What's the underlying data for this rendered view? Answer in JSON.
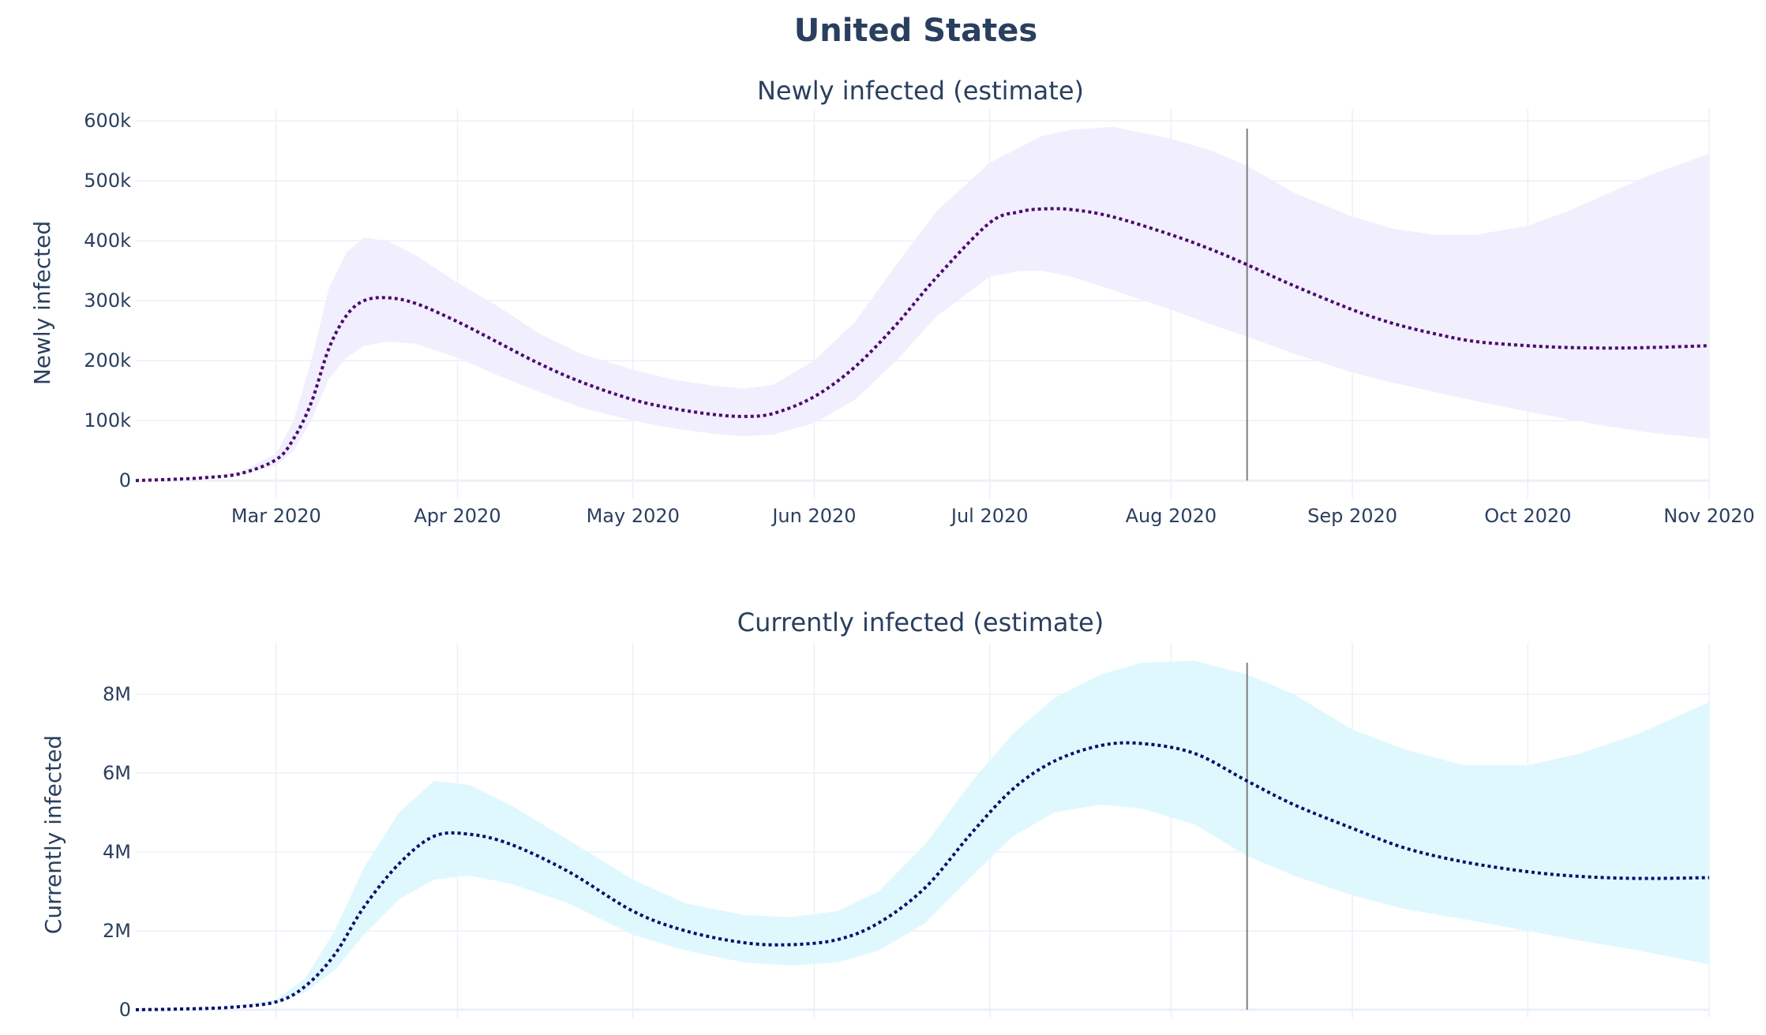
{
  "title": "United States",
  "colors": {
    "newly_line": "#4a0a6b",
    "newly_band": "#f1eefd",
    "current_line": "#0d0d6b",
    "current_band": "#dff8fe",
    "text": "#2a3f5f",
    "grid": "#ebf0f8",
    "marker": "#7f7f7f"
  },
  "chart_data": [
    {
      "type": "line",
      "title": "Newly infected (estimate)",
      "ylabel": "Newly infected",
      "xlabel": "",
      "xlim": [
        "2020-02-06",
        "2020-11-01"
      ],
      "ylim": [
        -30000,
        620000
      ],
      "x_ticks": [
        "Mar 2020",
        "Apr 2020",
        "May 2020",
        "Jun 2020",
        "Jul 2020",
        "Aug 2020",
        "Sep 2020",
        "Oct 2020",
        "Nov 2020"
      ],
      "x_tick_dates": [
        "2020-03-01",
        "2020-04-01",
        "2020-05-01",
        "2020-06-01",
        "2020-07-01",
        "2020-08-01",
        "2020-09-01",
        "2020-10-01",
        "2020-11-01"
      ],
      "y_ticks": [
        0,
        100000,
        200000,
        300000,
        400000,
        500000,
        600000
      ],
      "y_tick_labels": [
        "0",
        "100k",
        "200k",
        "300k",
        "400k",
        "500k",
        "600k"
      ],
      "grid": true,
      "legend": "none",
      "marker_date": "2020-08-14",
      "dates": [
        "2020-02-06",
        "2020-02-12",
        "2020-02-18",
        "2020-02-24",
        "2020-03-01",
        "2020-03-04",
        "2020-03-07",
        "2020-03-10",
        "2020-03-13",
        "2020-03-16",
        "2020-03-20",
        "2020-03-25",
        "2020-04-01",
        "2020-04-08",
        "2020-04-15",
        "2020-04-22",
        "2020-05-01",
        "2020-05-08",
        "2020-05-15",
        "2020-05-20",
        "2020-05-25",
        "2020-06-01",
        "2020-06-08",
        "2020-06-15",
        "2020-06-22",
        "2020-07-01",
        "2020-07-06",
        "2020-07-10",
        "2020-07-15",
        "2020-07-22",
        "2020-08-01",
        "2020-08-08",
        "2020-08-14",
        "2020-08-22",
        "2020-09-01",
        "2020-09-08",
        "2020-09-15",
        "2020-09-22",
        "2020-10-01",
        "2020-10-08",
        "2020-10-15",
        "2020-10-22",
        "2020-11-01"
      ],
      "series": [
        {
          "values": [
            0,
            2000,
            5000,
            12000,
            35000,
            70000,
            130000,
            220000,
            275000,
            300000,
            305000,
            295000,
            265000,
            230000,
            195000,
            165000,
            135000,
            120000,
            110000,
            107000,
            112000,
            140000,
            190000,
            260000,
            340000,
            430000,
            448000,
            453000,
            452000,
            440000,
            410000,
            385000,
            360000,
            325000,
            285000,
            262000,
            245000,
            232000,
            225000,
            222000,
            221000,
            222000,
            225000
          ],
          "lower": [
            0,
            1500,
            4000,
            10000,
            25000,
            50000,
            100000,
            170000,
            205000,
            225000,
            232000,
            228000,
            205000,
            175000,
            148000,
            122000,
            100000,
            87000,
            78000,
            74000,
            77000,
            96000,
            135000,
            200000,
            275000,
            340000,
            350000,
            350000,
            340000,
            318000,
            285000,
            260000,
            240000,
            212000,
            180000,
            163000,
            148000,
            133000,
            115000,
            102000,
            90000,
            80000,
            70000
          ],
          "upper": [
            0,
            2500,
            6000,
            15000,
            45000,
            100000,
            200000,
            320000,
            380000,
            405000,
            400000,
            375000,
            330000,
            290000,
            245000,
            212000,
            185000,
            168000,
            158000,
            153000,
            160000,
            200000,
            265000,
            360000,
            450000,
            530000,
            555000,
            575000,
            585000,
            590000,
            570000,
            550000,
            525000,
            480000,
            440000,
            420000,
            410000,
            410000,
            425000,
            450000,
            480000,
            510000,
            545000
          ]
        }
      ]
    },
    {
      "type": "line",
      "title": "Currently infected (estimate)",
      "ylabel": "Currently infected",
      "xlabel": "",
      "xlim": [
        "2020-02-06",
        "2020-11-01"
      ],
      "ylim": [
        -200000,
        9300000
      ],
      "y_ticks": [
        0,
        2000000,
        4000000,
        6000000,
        8000000
      ],
      "y_tick_labels": [
        "0",
        "2M",
        "4M",
        "6M",
        "8M"
      ],
      "grid": true,
      "legend": "none",
      "marker_date": "2020-08-14",
      "dates": [
        "2020-02-06",
        "2020-02-14",
        "2020-02-22",
        "2020-03-01",
        "2020-03-06",
        "2020-03-11",
        "2020-03-16",
        "2020-03-22",
        "2020-03-28",
        "2020-04-03",
        "2020-04-10",
        "2020-04-20",
        "2020-05-01",
        "2020-05-10",
        "2020-05-20",
        "2020-05-28",
        "2020-06-05",
        "2020-06-12",
        "2020-06-20",
        "2020-06-28",
        "2020-07-05",
        "2020-07-12",
        "2020-07-20",
        "2020-07-27",
        "2020-08-05",
        "2020-08-14",
        "2020-08-22",
        "2020-09-01",
        "2020-09-10",
        "2020-09-20",
        "2020-10-01",
        "2020-10-10",
        "2020-10-20",
        "2020-11-01"
      ],
      "series": [
        {
          "values": [
            0,
            20000,
            60000,
            200000,
            600000,
            1400000,
            2600000,
            3700000,
            4400000,
            4450000,
            4200000,
            3500000,
            2500000,
            2000000,
            1700000,
            1650000,
            1780000,
            2200000,
            3100000,
            4500000,
            5600000,
            6300000,
            6700000,
            6750000,
            6500000,
            5800000,
            5200000,
            4600000,
            4100000,
            3750000,
            3500000,
            3380000,
            3330000,
            3350000
          ],
          "lower": [
            0,
            15000,
            50000,
            150000,
            450000,
            1000000,
            1900000,
            2800000,
            3300000,
            3400000,
            3200000,
            2700000,
            1900000,
            1500000,
            1200000,
            1120000,
            1200000,
            1500000,
            2200000,
            3400000,
            4400000,
            5000000,
            5200000,
            5100000,
            4700000,
            3900000,
            3400000,
            2900000,
            2550000,
            2300000,
            2000000,
            1750000,
            1500000,
            1150000
          ],
          "upper": [
            0,
            25000,
            80000,
            260000,
            800000,
            2000000,
            3600000,
            5000000,
            5800000,
            5700000,
            5200000,
            4300000,
            3300000,
            2700000,
            2400000,
            2350000,
            2500000,
            3000000,
            4200000,
            5800000,
            7000000,
            7900000,
            8500000,
            8800000,
            8850000,
            8500000,
            8000000,
            7100000,
            6600000,
            6200000,
            6200000,
            6500000,
            7000000,
            7800000
          ]
        }
      ]
    }
  ]
}
